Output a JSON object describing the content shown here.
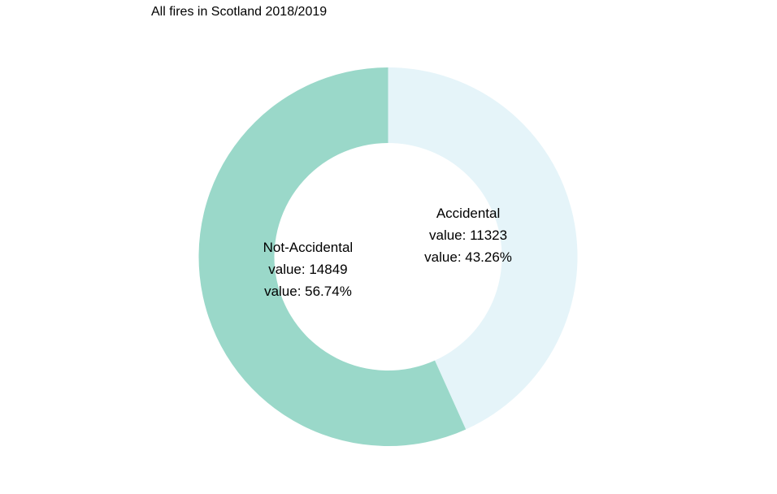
{
  "chart_data": {
    "type": "pie",
    "title": "All fires in Scotland 2018/2019",
    "donut": true,
    "slices": [
      {
        "name": "Accidental",
        "value": 11323,
        "percent": 43.26,
        "color": "#e5f4f9",
        "value_text": "value: 11323",
        "percent_text": "value: 43.26%"
      },
      {
        "name": "Not-Accidental",
        "value": 14849,
        "percent": 56.74,
        "color": "#9ad8c9",
        "value_text": "value: 14849",
        "percent_text": "value: 56.74%"
      }
    ]
  }
}
